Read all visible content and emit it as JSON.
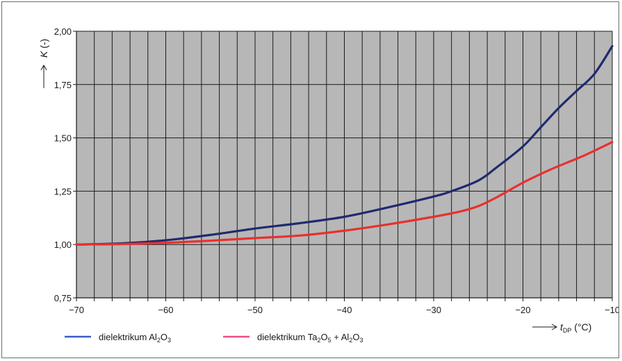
{
  "chart_data": {
    "type": "line",
    "title": "",
    "ylabel": "K (-)",
    "xlabel": "t_DP (°C)",
    "xlim": [
      -70,
      -10
    ],
    "ylim": [
      0.75,
      2.0
    ],
    "x_ticks": [
      -70,
      -60,
      -50,
      -40,
      -30,
      -20,
      -10
    ],
    "x_tick_labels": [
      "−70",
      "−60",
      "−50",
      "−40",
      "−30",
      "−20",
      "−10"
    ],
    "y_ticks": [
      0.75,
      1.0,
      1.25,
      1.5,
      1.75,
      2.0
    ],
    "y_tick_labels": [
      "0,75",
      "1,00",
      "1,25",
      "1,50",
      "1,75",
      "2,00"
    ],
    "grid": true,
    "plot_background": "#b7b7b7",
    "series": [
      {
        "name": "dielektrikum Al2O3",
        "color": "#1f2a6e",
        "legend_color": "#3b5cc4",
        "x": [
          -70,
          -65,
          -60,
          -55,
          -50,
          -45,
          -40,
          -35,
          -30,
          -28,
          -25,
          -23,
          -20,
          -18,
          -16,
          -14,
          -12,
          -10
        ],
        "y": [
          1.0,
          1.005,
          1.02,
          1.045,
          1.075,
          1.1,
          1.13,
          1.175,
          1.225,
          1.25,
          1.3,
          1.36,
          1.46,
          1.55,
          1.64,
          1.72,
          1.8,
          1.93
        ]
      },
      {
        "name": "dielektrikum Ta2O5 + Al2O3",
        "color": "#e8302e",
        "legend_color": "#ee4f82",
        "x": [
          -70,
          -65,
          -60,
          -55,
          -50,
          -45,
          -40,
          -35,
          -30,
          -27,
          -25,
          -23,
          -20,
          -17,
          -15,
          -13,
          -10
        ],
        "y": [
          1.0,
          1.002,
          1.008,
          1.018,
          1.03,
          1.042,
          1.065,
          1.095,
          1.13,
          1.155,
          1.18,
          1.22,
          1.29,
          1.35,
          1.385,
          1.42,
          1.48
        ]
      }
    ],
    "legend": {
      "placement": "bottom-left",
      "entries": [
        {
          "pre": "dielektrikum Al",
          "sub1": "2",
          "mid": "O",
          "sub2": "3",
          "post": ""
        },
        {
          "pre": "dielektrikum Ta",
          "sub1": "2",
          "mid": "O",
          "sub2": "5",
          "post": " + Al",
          "sub3": "2",
          "mid2": "O",
          "sub4": "3"
        }
      ]
    },
    "axis_labels": {
      "y": {
        "italic": "K",
        "rest": " (-)"
      },
      "x": {
        "italic": "t",
        "sub": "DP",
        "rest": " (°C)"
      }
    }
  }
}
